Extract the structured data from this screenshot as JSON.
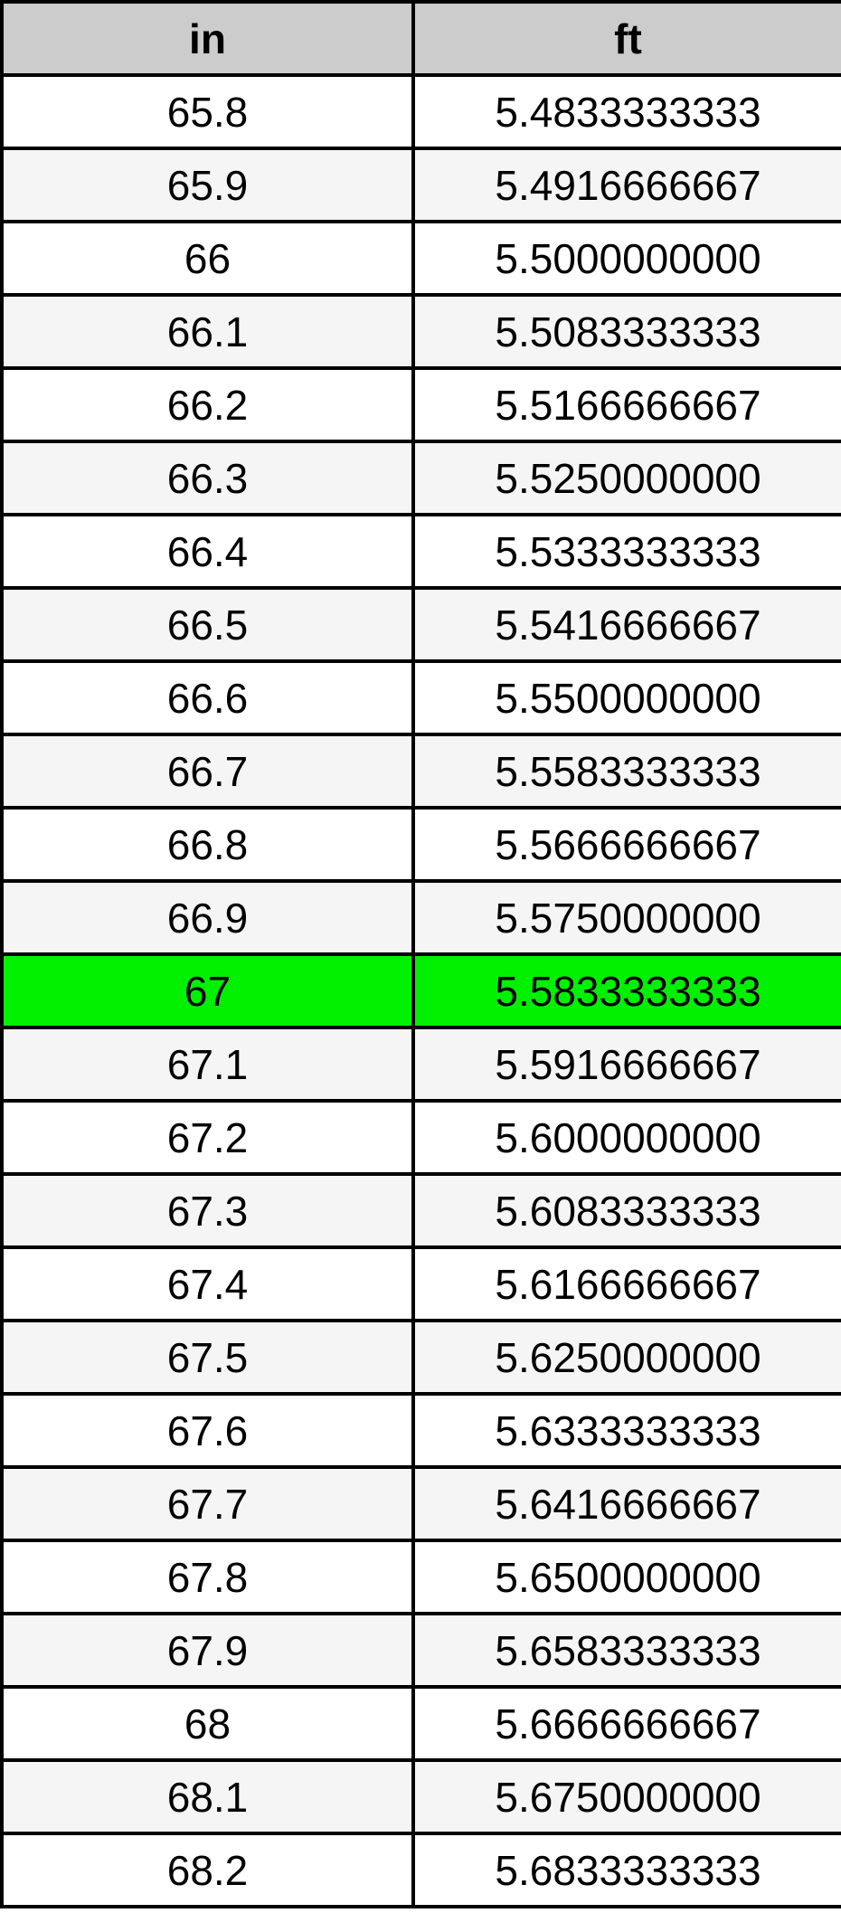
{
  "table": {
    "columns": [
      {
        "key": "in",
        "label": "in"
      },
      {
        "key": "ft",
        "label": "ft"
      }
    ],
    "colors": {
      "header_bg": "#cccccc",
      "row_bg": "#ffffff",
      "alt_row_bg": "#f5f5f5",
      "highlight_bg": "#00f000",
      "border": "#000000",
      "text": "#000000"
    },
    "highlighted_in_value": "67",
    "rows": [
      {
        "in": "65.8",
        "ft": "5.4833333333",
        "highlight": false
      },
      {
        "in": "65.9",
        "ft": "5.4916666667",
        "highlight": false
      },
      {
        "in": "66",
        "ft": "5.5000000000",
        "highlight": false
      },
      {
        "in": "66.1",
        "ft": "5.5083333333",
        "highlight": false
      },
      {
        "in": "66.2",
        "ft": "5.5166666667",
        "highlight": false
      },
      {
        "in": "66.3",
        "ft": "5.5250000000",
        "highlight": false
      },
      {
        "in": "66.4",
        "ft": "5.5333333333",
        "highlight": false
      },
      {
        "in": "66.5",
        "ft": "5.5416666667",
        "highlight": false
      },
      {
        "in": "66.6",
        "ft": "5.5500000000",
        "highlight": false
      },
      {
        "in": "66.7",
        "ft": "5.5583333333",
        "highlight": false
      },
      {
        "in": "66.8",
        "ft": "5.5666666667",
        "highlight": false
      },
      {
        "in": "66.9",
        "ft": "5.5750000000",
        "highlight": false
      },
      {
        "in": "67",
        "ft": "5.5833333333",
        "highlight": true
      },
      {
        "in": "67.1",
        "ft": "5.5916666667",
        "highlight": false
      },
      {
        "in": "67.2",
        "ft": "5.6000000000",
        "highlight": false
      },
      {
        "in": "67.3",
        "ft": "5.6083333333",
        "highlight": false
      },
      {
        "in": "67.4",
        "ft": "5.6166666667",
        "highlight": false
      },
      {
        "in": "67.5",
        "ft": "5.6250000000",
        "highlight": false
      },
      {
        "in": "67.6",
        "ft": "5.6333333333",
        "highlight": false
      },
      {
        "in": "67.7",
        "ft": "5.6416666667",
        "highlight": false
      },
      {
        "in": "67.8",
        "ft": "5.6500000000",
        "highlight": false
      },
      {
        "in": "67.9",
        "ft": "5.6583333333",
        "highlight": false
      },
      {
        "in": "68",
        "ft": "5.6666666667",
        "highlight": false
      },
      {
        "in": "68.1",
        "ft": "5.6750000000",
        "highlight": false
      },
      {
        "in": "68.2",
        "ft": "5.6833333333",
        "highlight": false
      }
    ]
  }
}
